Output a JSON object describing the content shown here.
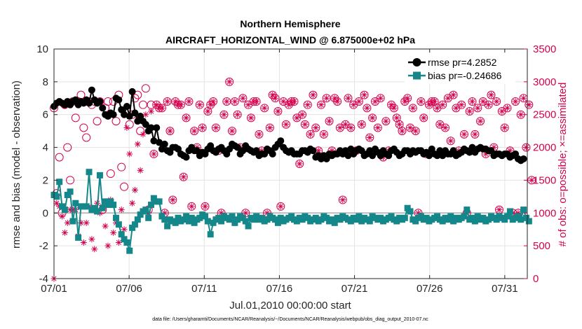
{
  "chart_data": {
    "type": "line",
    "title": "Northern Hemisphere",
    "subtitle": "AIRCRAFT_HORIZONTAL_WIND @ 6.875000e+02 hPa",
    "xlabel": "Jul.01,2010 00:00:00 start",
    "ylabel": "rmse and bias (model - observation)",
    "ylabel_right": "# of obs: o=possible; ×=assimilated",
    "footnote": "data file: /Users/gharamti/Documents/NCAR/Reanalysis/~/Documents/NCAR/Reanalysis/webpub/obs_diag_output_2010-07.nc",
    "xlim": [
      0,
      31.5
    ],
    "ylim": [
      -4,
      10
    ],
    "ylim_right": [
      0,
      3500
    ],
    "x_ticks": [
      0,
      5,
      10,
      15,
      20,
      25,
      30
    ],
    "x_tick_labels": [
      "07/01",
      "07/06",
      "07/11",
      "07/16",
      "07/21",
      "07/26",
      "07/31"
    ],
    "y_ticks": [
      -4,
      -2,
      0,
      2,
      4,
      6,
      8,
      10
    ],
    "y_tick_labels": [
      "-4",
      "-2",
      "0",
      "2",
      "4",
      "6",
      "8",
      "10"
    ],
    "y_ticks_right": [
      0,
      500,
      1000,
      1500,
      2000,
      2500,
      3000,
      3500
    ],
    "y_tick_labels_right": [
      "0",
      "500",
      "1000",
      "1500",
      "2000",
      "2500",
      "3000",
      "3500"
    ],
    "grid": true,
    "legend_position": "top-right",
    "colors": {
      "rmse": "#000000",
      "bias": "#14878a",
      "obs": "#d6004e",
      "zero": "#bbbbbb",
      "grid": "#e3e3e3"
    },
    "series": [
      {
        "name": "rmse pr=4.2852",
        "marker": "circle",
        "axis": "left",
        "values": [
          6.5,
          6.7,
          6.8,
          6.7,
          6.6,
          6.8,
          6.6,
          6.8,
          6.9,
          6.6,
          6.8,
          6.7,
          6.9,
          6.7,
          7.5,
          6.9,
          6.7,
          6.8,
          6.4,
          6.0,
          5.9,
          6.1,
          6.0,
          7.0,
          6.9,
          6.3,
          6.0,
          6.5,
          5.9,
          7.4,
          6.1,
          5.6,
          5.9,
          5.6,
          5.4,
          5.0,
          5.2,
          4.4,
          5.2,
          4.3,
          3.9,
          4.2,
          3.8,
          3.7,
          4.0,
          4.0,
          3.9,
          3.6,
          3.5,
          3.4,
          3.8,
          4.0,
          3.8,
          3.8,
          3.5,
          3.7,
          3.6,
          3.9,
          4.1,
          3.8,
          3.7,
          3.9,
          4.0,
          3.8,
          3.6,
          3.9,
          4.2,
          4.1,
          4.0,
          3.6,
          3.8,
          4.1,
          3.9,
          3.8,
          3.7,
          3.8,
          3.5,
          3.6,
          3.6,
          3.9,
          3.8,
          3.6,
          4.0,
          4.2,
          4.4,
          4.0,
          3.8,
          3.7,
          3.8,
          3.6,
          3.6,
          3.6,
          3.8,
          3.8,
          3.7,
          3.9,
          3.8,
          3.4,
          3.5,
          3.3,
          3.5,
          3.3,
          3.6,
          3.5,
          3.6,
          3.6,
          3.8,
          3.6,
          3.8,
          3.5,
          3.9,
          3.6,
          3.8,
          3.9,
          3.8,
          3.5,
          3.6,
          3.8,
          3.5,
          3.9,
          3.7,
          3.5,
          3.8,
          3.6,
          3.5,
          3.8,
          3.9,
          3.7,
          3.5,
          3.6,
          3.8,
          3.8,
          3.6,
          3.8,
          3.7,
          3.8,
          3.8,
          3.6,
          3.7,
          3.5,
          3.9,
          3.6,
          3.5,
          3.8,
          3.5,
          3.8,
          3.6,
          3.6,
          3.8,
          3.5,
          3.6,
          3.7,
          3.9,
          3.8,
          3.7,
          4.0,
          3.7,
          3.9,
          4.0,
          3.9,
          3.9,
          3.8,
          3.8,
          3.5,
          3.6,
          3.6,
          3.5,
          3.6,
          3.6,
          3.4,
          3.5,
          3.6,
          3.3,
          3.2,
          3.3
        ]
      },
      {
        "name": "bias pr=-0.24686",
        "marker": "square",
        "axis": "left",
        "values": [
          1.1,
          1.0,
          1.9,
          0.4,
          0.2,
          1.1,
          1.3,
          -0.5,
          0.6,
          -1.5,
          0.4,
          0.4,
          0.4,
          2.5,
          0.2,
          0.3,
          0.1,
          2.3,
          0.3,
          0.7,
          0.5,
          0.7,
          0.5,
          -0.3,
          -0.7,
          -1.3,
          -1.6,
          -1.8,
          -2.3,
          -0.9,
          -0.7,
          -0.4,
          -0.1,
          0.1,
          0.2,
          -0.3,
          0.5,
          0.9,
          0.7,
          0.7,
          -0.2,
          -0.4,
          -0.8,
          -0.4,
          -0.5,
          -0.6,
          -0.3,
          -0.5,
          -0.4,
          -0.2,
          -0.5,
          -0.3,
          -0.6,
          -0.4,
          -0.3,
          -0.1,
          -0.2,
          -0.5,
          -1.3,
          -0.6,
          -0.4,
          -0.3,
          -0.5,
          -0.2,
          -0.3,
          -0.4,
          -0.2,
          -0.6,
          -0.4,
          -0.2,
          -0.3,
          -0.5,
          -0.8,
          -0.3,
          -0.4,
          -0.2,
          -0.4,
          -0.3,
          -0.5,
          -0.4,
          -0.2,
          -0.3,
          -0.4,
          -0.6,
          -0.3,
          -0.5,
          -0.4,
          -0.3,
          -0.2,
          -0.4,
          -0.5,
          -0.3,
          -0.4,
          -0.2,
          -0.3,
          -0.5,
          -0.4,
          -0.3,
          -0.5,
          -0.4,
          -0.2,
          -0.3,
          -0.5,
          -0.4,
          -0.6,
          -0.3,
          -0.4,
          -0.2,
          -0.3,
          -0.4,
          -0.5,
          -0.3,
          -0.4,
          -0.2,
          -0.5,
          -0.3,
          -0.4,
          -0.5,
          -0.2,
          -0.3,
          -0.4,
          -0.3,
          -0.5,
          -0.4,
          -0.3,
          -0.2,
          -0.4,
          -0.5,
          -0.3,
          -0.4,
          -0.3,
          0.3,
          0.1,
          -0.4,
          -0.5,
          -0.3,
          -0.2,
          -0.4,
          -0.3,
          -0.5,
          -0.4,
          -0.3,
          -0.2,
          -0.4,
          -0.5,
          -0.3,
          -0.4,
          -0.2,
          -0.5,
          -0.3,
          -0.4,
          -0.3,
          -0.2,
          0.2,
          -0.4,
          -0.3,
          -0.5,
          -0.2,
          -0.4,
          -0.3,
          -0.5,
          -0.4,
          -0.2,
          -0.3,
          -0.4,
          -0.2,
          -0.3,
          -0.4,
          -0.2,
          0.1,
          -0.4,
          -0.3,
          -0.2,
          -0.4,
          0.2,
          -0.3,
          -0.5
        ]
      },
      {
        "name": "# of obs possible",
        "marker": "open-circle",
        "axis": "right",
        "values": [
          2600,
          1300,
          1850,
          1000,
          2650,
          2000,
          1500,
          2700,
          2450,
          2700,
          2800,
          2300,
          2150,
          2700,
          2650,
          2700,
          2400,
          2700,
          1050,
          2600,
          2700,
          1600,
          2700,
          2400,
          2800,
          1700,
          1400,
          2550,
          2350,
          2500,
          2750,
          2800,
          2250,
          2650,
          2900,
          1050,
          2650,
          1900,
          2650,
          2600,
          2600,
          1000,
          2700,
          2250,
          1200,
          2700,
          2650,
          2650,
          1550,
          2450,
          2700,
          1100,
          2250,
          2000,
          2650,
          2300,
          1100,
          2550,
          2650,
          2700,
          2300,
          1950,
          1000,
          2500,
          2700,
          3000,
          2250,
          2700,
          2500,
          2000,
          2750,
          1000,
          2650,
          2450,
          2700,
          2700,
          2200,
          1950,
          2600,
          1000,
          2300,
          2800,
          2750,
          2550,
          1100,
          2700,
          2350,
          2650,
          2700,
          2700,
          2450,
          1750,
          2500,
          2350,
          2650,
          2200,
          2800,
          2300,
          1950,
          2650,
          2200,
          2750,
          2400,
          1950,
          2750,
          2700,
          2300,
          1200,
          2350,
          2750,
          2300,
          2650,
          1950,
          2700,
          2350,
          2800,
          2600,
          2150,
          2450,
          2700,
          2300,
          2750,
          1850,
          2400,
          1950,
          2650,
          2600,
          2450,
          2350,
          2250,
          2700,
          2750,
          2300,
          2600,
          2250,
          1000,
          2700,
          2450,
          1900,
          2650,
          2700,
          2700,
          2600,
          2350,
          2650,
          2300,
          2750,
          2100,
          2800,
          2600,
          1950,
          2650,
          2200,
          1000,
          2550,
          2700,
          2200,
          2600,
          2400,
          2700,
          1900,
          2650,
          2800,
          2000,
          2700,
          1050,
          2550,
          2300,
          2600,
          1950,
          1000,
          2700,
          1000,
          2500,
          2750,
          2000,
          2650,
          1500
        ]
      },
      {
        "name": "# of obs assimilated",
        "marker": "x",
        "axis": "right",
        "values": [
          0,
          1150,
          1100,
          950,
          700,
          850,
          1050,
          1050,
          1050,
          650,
          850,
          550,
          850,
          1100,
          600,
          450,
          1150,
          1000,
          1100,
          800,
          500,
          1200,
          700,
          850,
          550,
          1050,
          750,
          2300,
          1900,
          1150,
          1350,
          2050,
          1650,
          2200,
          2500,
          1000,
          2550,
          1900,
          2650,
          2600,
          2600,
          1000,
          2700,
          2250,
          1200,
          2700,
          2650,
          2650,
          1550,
          2450,
          2700,
          1100,
          2250,
          2000,
          2650,
          2300,
          1100,
          2550,
          2650,
          2700,
          2300,
          1950,
          1000,
          2500,
          2700,
          3000,
          2250,
          2700,
          2500,
          2000,
          2750,
          1000,
          2650,
          2450,
          2700,
          2700,
          2200,
          1950,
          2600,
          1000,
          2300,
          2800,
          2750,
          2550,
          1100,
          2700,
          2350,
          2650,
          2700,
          2700,
          2450,
          1750,
          2500,
          2350,
          2650,
          2200,
          2800,
          2300,
          1950,
          2650,
          2200,
          2750,
          2400,
          1950,
          2750,
          2700,
          2300,
          1200,
          2350,
          2750,
          2300,
          2650,
          1950,
          2700,
          2350,
          2800,
          2600,
          2150,
          2450,
          2700,
          2300,
          2750,
          1850,
          2400,
          1950,
          2650,
          2600,
          2450,
          2350,
          2250,
          2700,
          2750,
          2300,
          2600,
          2250,
          1000,
          2700,
          2450,
          1900,
          2650,
          2700,
          2700,
          2600,
          2350,
          2650,
          2300,
          2750,
          2100,
          2800,
          2600,
          1950,
          2650,
          2200,
          1000,
          2550,
          2700,
          2200,
          2600,
          2400,
          2700,
          1900,
          2650,
          2800,
          2000,
          2700,
          1050,
          2550,
          2300,
          2600,
          1950,
          1000,
          2700,
          1000,
          2500,
          2750,
          2000,
          2650,
          1500
        ]
      }
    ]
  }
}
